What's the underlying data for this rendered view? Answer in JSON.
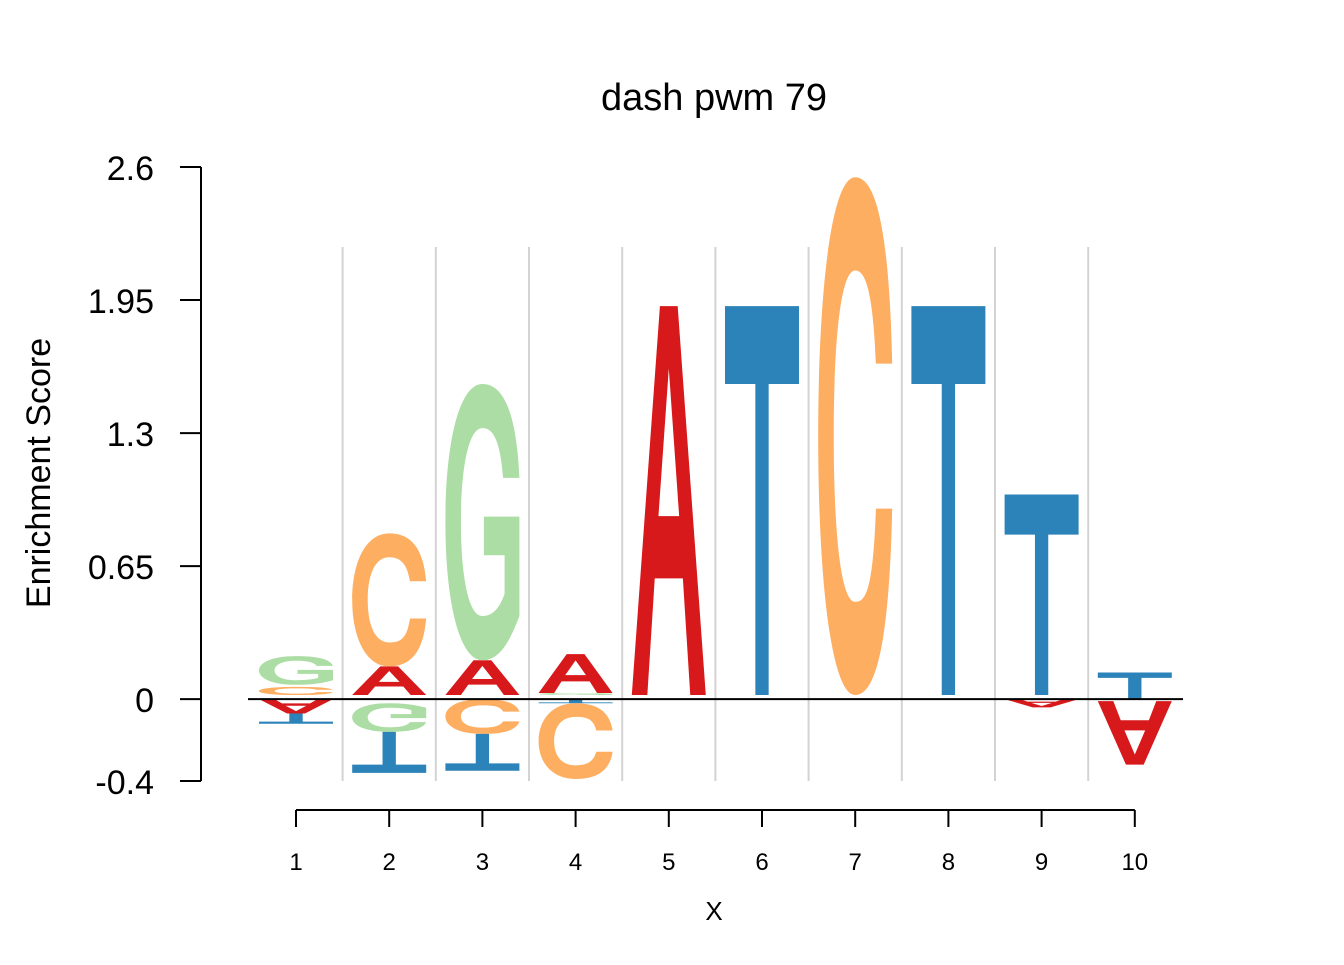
{
  "chart_data": {
    "type": "sequence-logo",
    "title": "dash pwm 79",
    "xlabel": "X",
    "ylabel": "Enrichment Score",
    "ylim": [
      -0.4,
      2.6
    ],
    "yticks": [
      "2.6",
      "1.95",
      "1.3",
      "0.65",
      "0",
      "-0.4"
    ],
    "xticks": [
      "1",
      "2",
      "3",
      "4",
      "5",
      "6",
      "7",
      "8",
      "9",
      "10"
    ],
    "grid": true,
    "colors": {
      "A": "#d7191c",
      "C": "#fdae61",
      "G": "#abdda4",
      "T": "#2b83ba"
    },
    "positions": [
      {
        "x": "1",
        "letters": [
          {
            "base": "A",
            "from": 0.0,
            "to": -0.07
          },
          {
            "base": "T",
            "from": -0.07,
            "to": -0.12
          },
          {
            "base": "C",
            "from": 0.02,
            "to": 0.06
          },
          {
            "base": "G",
            "from": 0.07,
            "to": 0.21
          }
        ]
      },
      {
        "x": "2",
        "letters": [
          {
            "base": "G",
            "from": -0.02,
            "to": -0.16
          },
          {
            "base": "T",
            "from": -0.16,
            "to": -0.36
          },
          {
            "base": "A",
            "from": 0.02,
            "to": 0.16
          },
          {
            "base": "C",
            "from": 0.16,
            "to": 0.81
          }
        ]
      },
      {
        "x": "3",
        "letters": [
          {
            "base": "C",
            "from": 0.0,
            "to": -0.17
          },
          {
            "base": "T",
            "from": -0.17,
            "to": -0.35
          },
          {
            "base": "A",
            "from": 0.02,
            "to": 0.19
          },
          {
            "base": "G",
            "from": 0.19,
            "to": 1.54
          }
        ]
      },
      {
        "x": "4",
        "letters": [
          {
            "base": "T",
            "from": 0.0,
            "to": -0.02
          },
          {
            "base": "C",
            "from": -0.02,
            "to": -0.39
          },
          {
            "base": "G",
            "from": 0.02,
            "to": 0.03
          },
          {
            "base": "A",
            "from": 0.03,
            "to": 0.22
          }
        ]
      },
      {
        "x": "5",
        "letters": [
          {
            "base": "A",
            "from": 0.02,
            "to": 1.92
          }
        ]
      },
      {
        "x": "6",
        "letters": [
          {
            "base": "T",
            "from": 0.02,
            "to": 1.92
          }
        ]
      },
      {
        "x": "7",
        "letters": [
          {
            "base": "C",
            "from": 0.02,
            "to": 2.55
          }
        ]
      },
      {
        "x": "8",
        "letters": [
          {
            "base": "T",
            "from": 0.02,
            "to": 1.92
          }
        ]
      },
      {
        "x": "9",
        "letters": [
          {
            "base": "A",
            "from": 0.0,
            "to": -0.04
          },
          {
            "base": "T",
            "from": 0.02,
            "to": 1.0
          }
        ]
      },
      {
        "x": "10",
        "letters": [
          {
            "base": "T",
            "from": 0.0,
            "to": 0.13
          },
          {
            "base": "A",
            "from": -0.01,
            "to": -0.32
          }
        ]
      }
    ]
  }
}
